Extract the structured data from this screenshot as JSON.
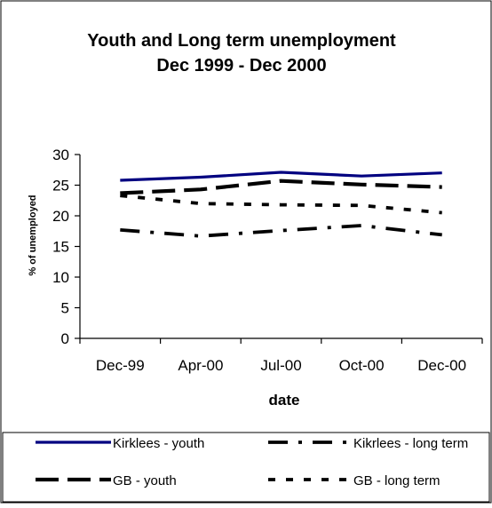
{
  "chart_data": {
    "type": "line",
    "title": "Youth and Long term unemployment",
    "subtitle": "Dec 1999 - Dec 2000",
    "xlabel": "date",
    "ylabel": "% of unemployed",
    "categories": [
      "Dec-99",
      "Apr-00",
      "Jul-00",
      "Oct-00",
      "Dec-00"
    ],
    "ylim": [
      0,
      30
    ],
    "yticks": [
      0,
      5,
      10,
      15,
      20,
      25,
      30
    ],
    "grid": false,
    "legend_position": "bottom",
    "series": [
      {
        "name": "Kirklees - youth",
        "values": [
          25.8,
          26.3,
          27.1,
          26.5,
          27.0
        ],
        "color": "#000080",
        "dash": "solid"
      },
      {
        "name": "Kikrlees - long term",
        "values": [
          17.7,
          16.7,
          17.6,
          18.4,
          16.9
        ],
        "color": "#000000",
        "dash": "dashdot"
      },
      {
        "name": "GB - youth",
        "values": [
          23.7,
          24.3,
          25.7,
          25.1,
          24.7
        ],
        "color": "#000000",
        "dash": "longdash"
      },
      {
        "name": "GB - long term",
        "values": [
          23.3,
          22.0,
          21.8,
          21.7,
          20.5
        ],
        "color": "#000000",
        "dash": "dotted"
      }
    ]
  }
}
